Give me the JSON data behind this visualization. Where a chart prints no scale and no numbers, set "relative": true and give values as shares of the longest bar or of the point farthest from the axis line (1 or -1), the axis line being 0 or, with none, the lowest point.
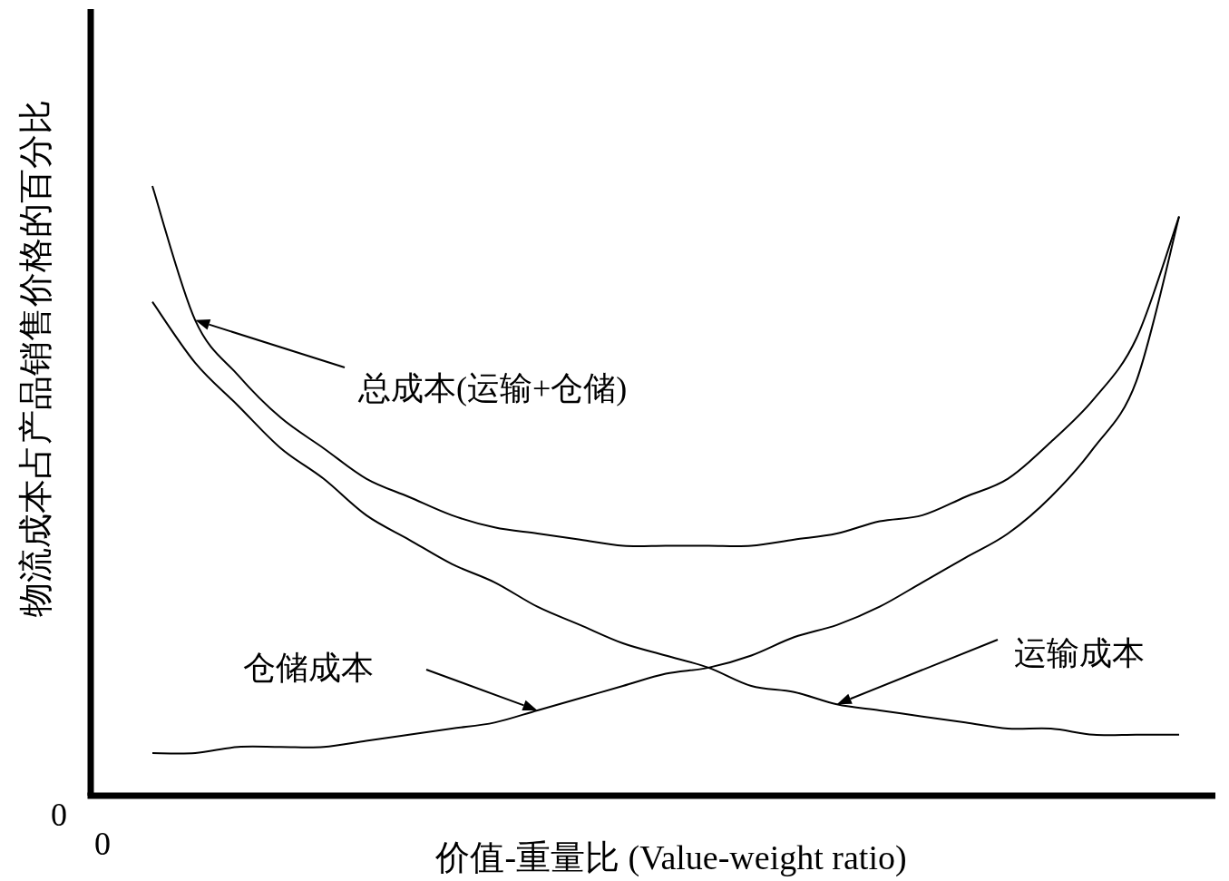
{
  "chart_data": {
    "type": "line",
    "relative": true,
    "xlabel": "价值-重量比 (Value-weight ratio)",
    "ylabel": "物流成本占产品销售价格的百分比",
    "annotations": [
      "0",
      "0"
    ],
    "categories": [
      null,
      null,
      null,
      null,
      null,
      null,
      null,
      null,
      null,
      null,
      null,
      null,
      null,
      null,
      null,
      null,
      null,
      null,
      null,
      null,
      null,
      null,
      null,
      null,
      null
    ],
    "series": [
      {
        "name": "总成本(运输+仓储)",
        "color": "#000000",
        "values": [
          1.0,
          0.78,
          0.69,
          0.62,
          0.57,
          0.52,
          0.49,
          0.46,
          0.44,
          0.43,
          0.42,
          0.41,
          0.41,
          0.41,
          0.41,
          0.42,
          0.43,
          0.45,
          0.46,
          0.49,
          0.52,
          0.58,
          0.65,
          0.75,
          0.95
        ]
      },
      {
        "name": "运输成本",
        "color": "#000000",
        "values": [
          0.81,
          0.71,
          0.64,
          0.57,
          0.52,
          0.46,
          0.42,
          0.38,
          0.35,
          0.31,
          0.28,
          0.25,
          0.23,
          0.21,
          0.18,
          0.17,
          0.15,
          0.14,
          0.13,
          0.12,
          0.11,
          0.11,
          0.1,
          0.1,
          0.1
        ]
      },
      {
        "name": "仓储成本",
        "color": "#000000",
        "values": [
          0.07,
          0.07,
          0.08,
          0.08,
          0.08,
          0.09,
          0.1,
          0.11,
          0.12,
          0.14,
          0.16,
          0.18,
          0.2,
          0.21,
          0.23,
          0.26,
          0.28,
          0.31,
          0.35,
          0.39,
          0.43,
          0.49,
          0.57,
          0.68,
          0.95
        ]
      }
    ],
    "marker": "none",
    "line_style": "solid"
  }
}
